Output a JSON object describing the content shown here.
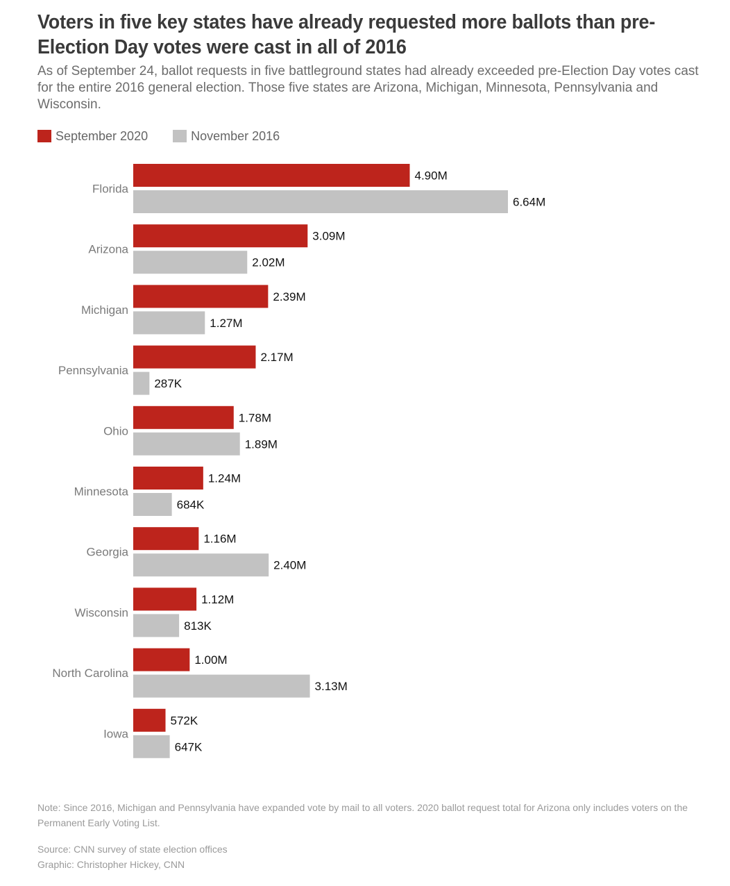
{
  "chart_data": {
    "type": "bar",
    "orientation": "horizontal",
    "title": "Voters in five key states have already requested more ballots than pre-Election Day votes were cast in all of 2016",
    "subtitle": "As of September 24, ballot requests in five battleground states had already exceeded pre-Election Day votes cast for the entire 2016 general election. Those five states are Arizona, Michigan, Minnesota, Pennsylvania and Wisconsin.",
    "categories": [
      "Florida",
      "Arizona",
      "Michigan",
      "Pennsylvania",
      "Ohio",
      "Minnesota",
      "Georgia",
      "Wisconsin",
      "North Carolina",
      "Iowa"
    ],
    "series": [
      {
        "name": "September 2020",
        "color": "#bd241c",
        "values": [
          4900000,
          3090000,
          2390000,
          2170000,
          1780000,
          1240000,
          1160000,
          1120000,
          1000000,
          572000
        ],
        "labels": [
          "4.90M",
          "3.09M",
          "2.39M",
          "2.17M",
          "1.78M",
          "1.24M",
          "1.16M",
          "1.12M",
          "1.00M",
          "572K"
        ]
      },
      {
        "name": "November 2016",
        "color": "#c2c2c2",
        "values": [
          6640000,
          2020000,
          1270000,
          287000,
          1890000,
          684000,
          2400000,
          813000,
          3130000,
          647000
        ],
        "labels": [
          "6.64M",
          "2.02M",
          "1.27M",
          "287K",
          "1.89M",
          "684K",
          "2.40M",
          "813K",
          "3.13M",
          "647K"
        ]
      }
    ],
    "xlim": [
      0,
      6640000
    ],
    "grid": false,
    "legend": "top-left",
    "note": "Note: Since 2016, Michigan and Pennsylvania have expanded vote by mail to all voters. 2020 ballot request total for Arizona only includes voters on the Permanent Early Voting List.",
    "source": "Source: CNN survey of state election offices",
    "credit": "Graphic: Christopher Hickey, CNN"
  }
}
